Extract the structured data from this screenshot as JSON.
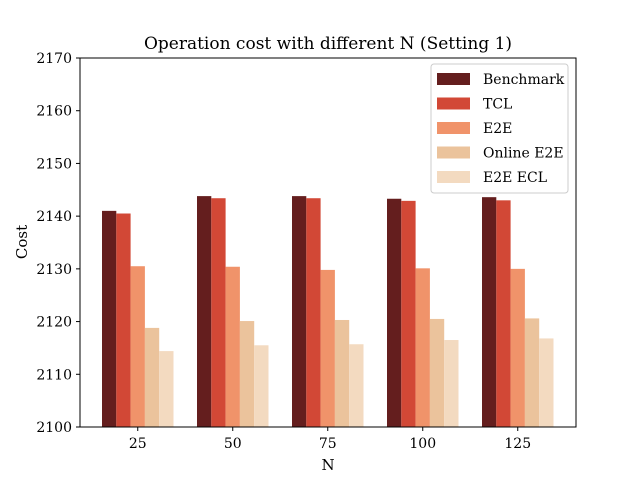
{
  "chart_data": {
    "type": "bar",
    "title": "Operation cost with different N (Setting 1)",
    "xlabel": "N",
    "ylabel": "Cost",
    "categories": [
      "25",
      "50",
      "75",
      "100",
      "125"
    ],
    "ylim": [
      2100,
      2170
    ],
    "yticks": [
      2100,
      2110,
      2120,
      2130,
      2140,
      2150,
      2160,
      2170
    ],
    "grid": false,
    "legend_position": "top-right",
    "series": [
      {
        "name": "Benchmark",
        "color": "#641e1e",
        "values": [
          2141.0,
          2143.8,
          2143.8,
          2143.3,
          2143.6
        ]
      },
      {
        "name": "TCL",
        "color": "#d24836",
        "values": [
          2140.5,
          2143.4,
          2143.4,
          2142.9,
          2143.0
        ]
      },
      {
        "name": "E2E",
        "color": "#f0936a",
        "values": [
          2130.5,
          2130.4,
          2129.8,
          2130.1,
          2130.0
        ]
      },
      {
        "name": "Online E2E",
        "color": "#ebc39c",
        "values": [
          2118.8,
          2120.1,
          2120.3,
          2120.5,
          2120.6
        ]
      },
      {
        "name": "E2E ECL",
        "color": "#f3dac0",
        "values": [
          2114.4,
          2115.5,
          2115.7,
          2116.5,
          2116.8
        ]
      }
    ]
  }
}
